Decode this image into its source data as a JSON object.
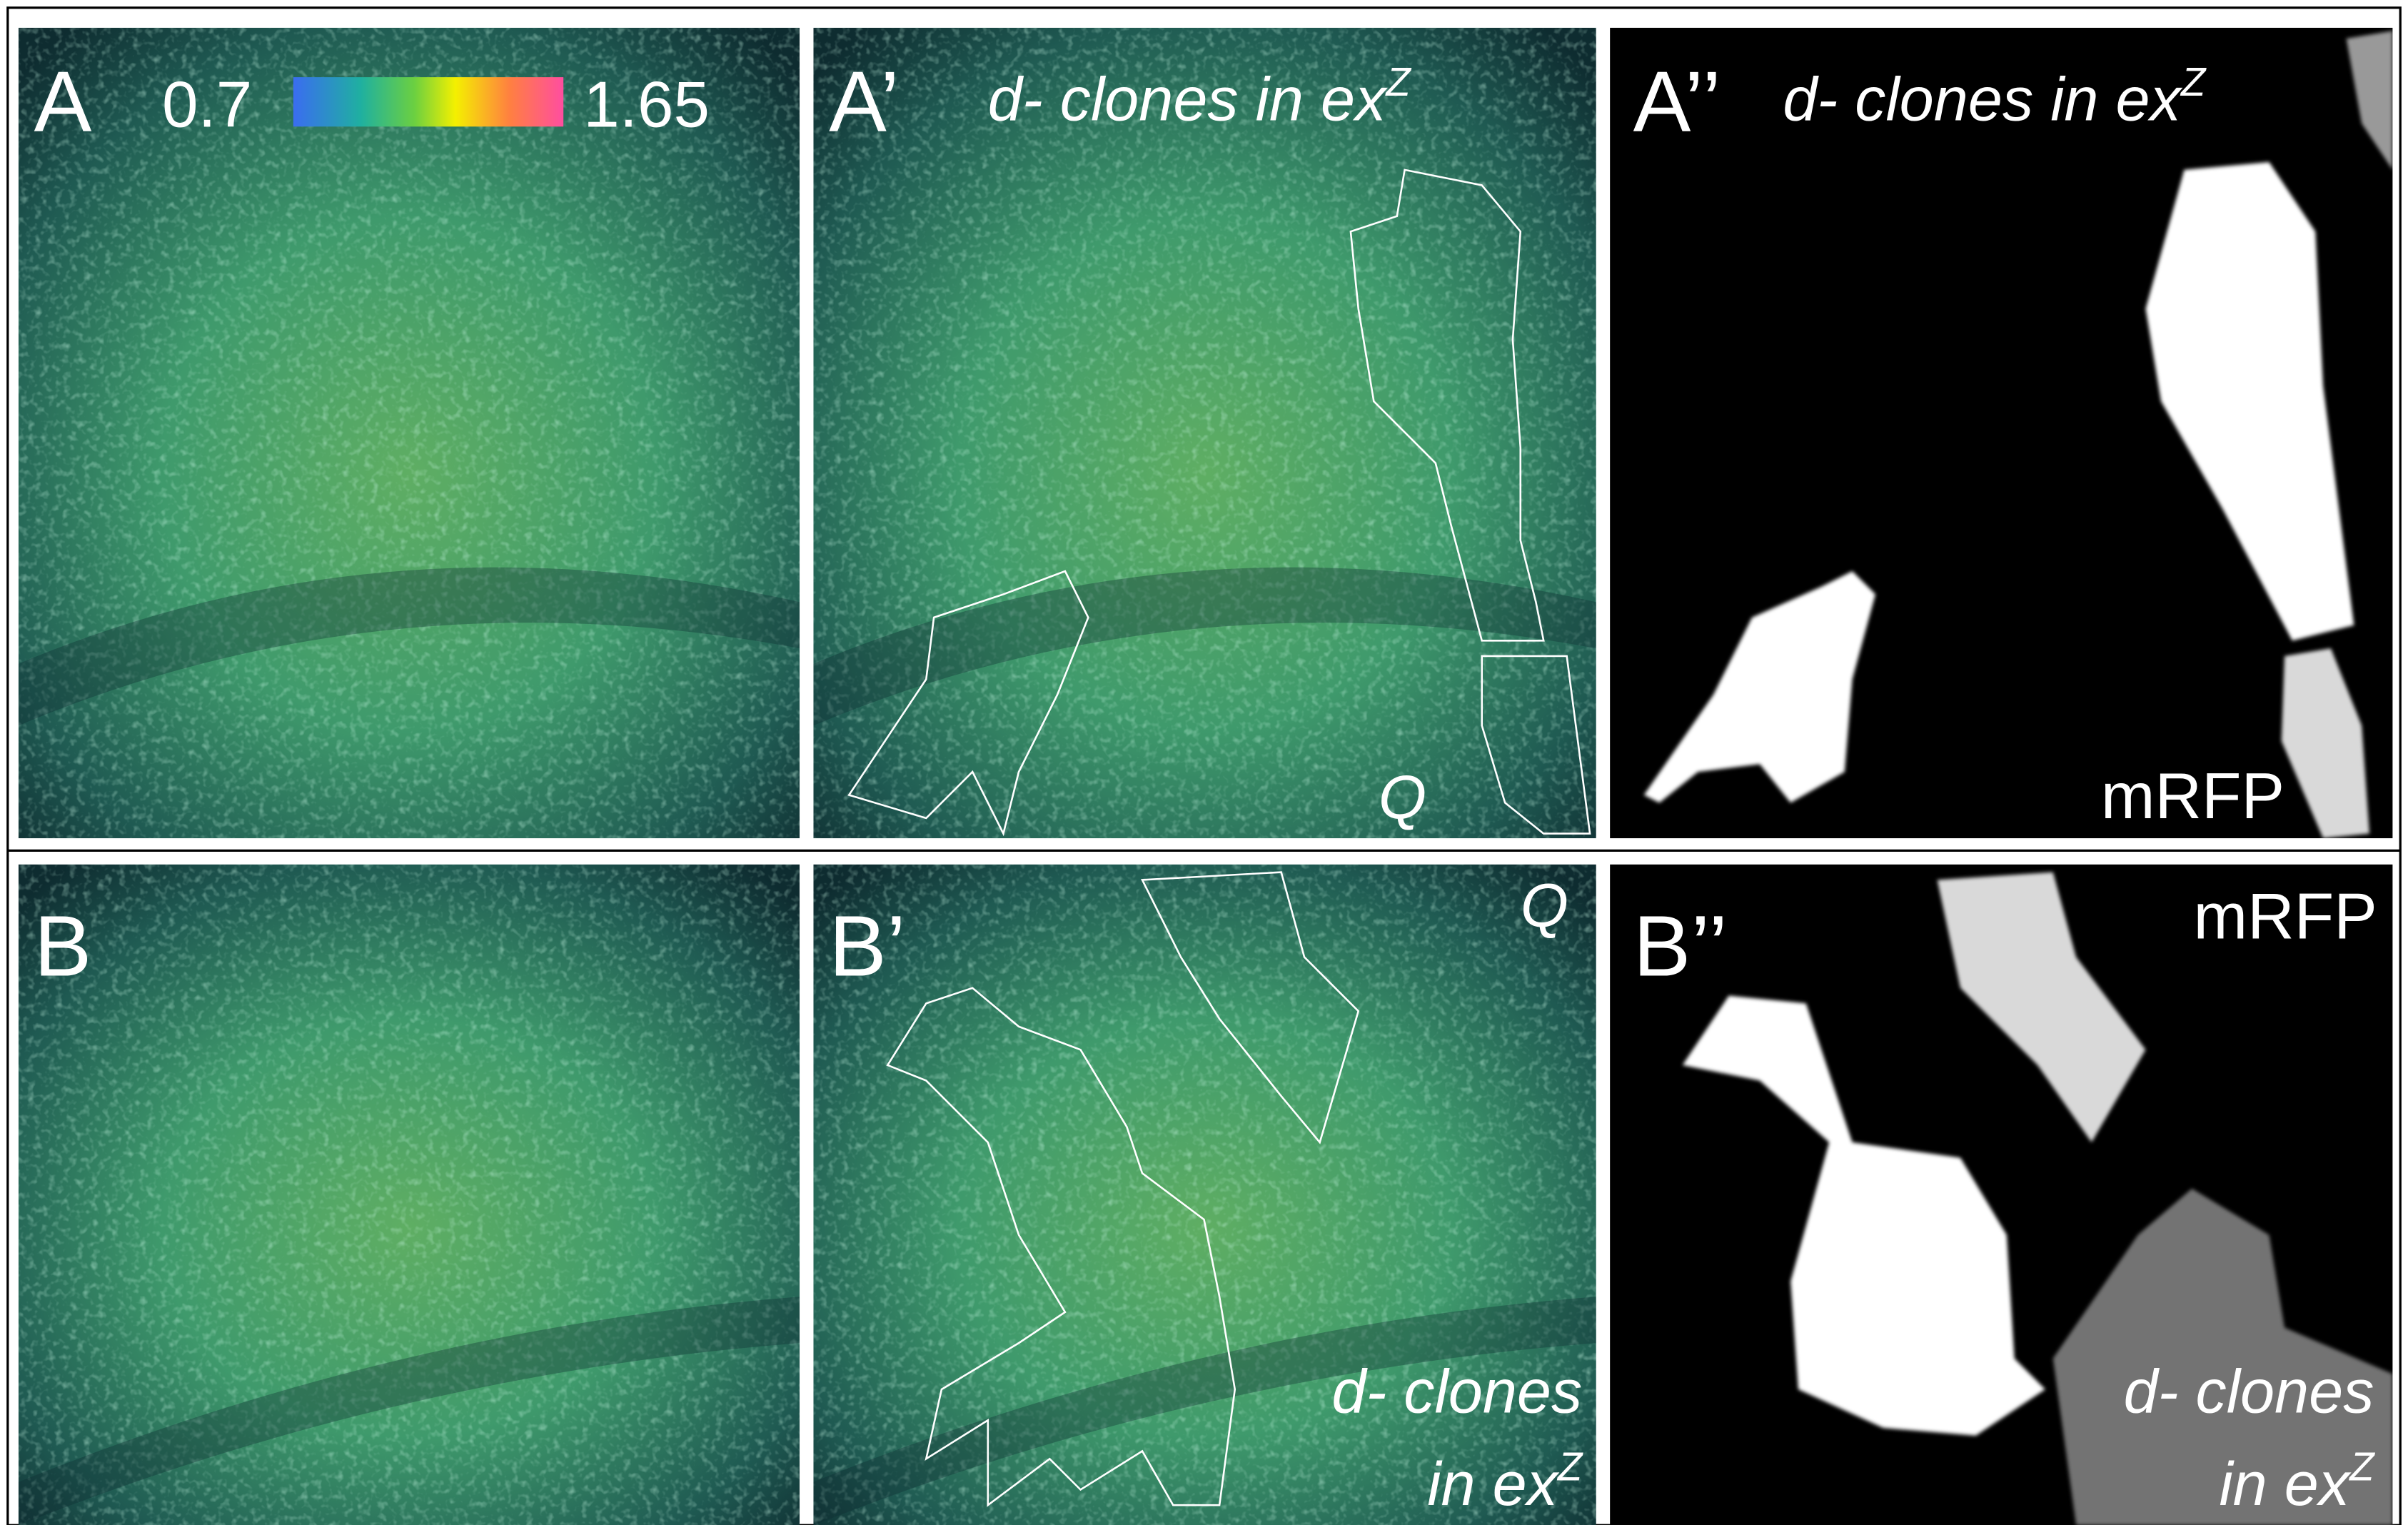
{
  "colorbar": {
    "min": 0.7,
    "max": 1.65
  },
  "panels": [
    {
      "label": "A"
    },
    {
      "label": "A’",
      "caption": [
        "d- clones in ex",
        "Z"
      ],
      "marker": "Q"
    },
    {
      "label": "A’’",
      "caption": [
        "d- clones in ex",
        "Z"
      ],
      "marker": "mRFP"
    },
    {
      "label": "B"
    },
    {
      "label": "B’",
      "marker": "Q",
      "caption": [
        "d- clones",
        "in ex",
        "Z"
      ]
    },
    {
      "label": "B’’",
      "marker": "mRFP",
      "caption": [
        "d- clones",
        "in ex",
        "Z"
      ]
    }
  ]
}
